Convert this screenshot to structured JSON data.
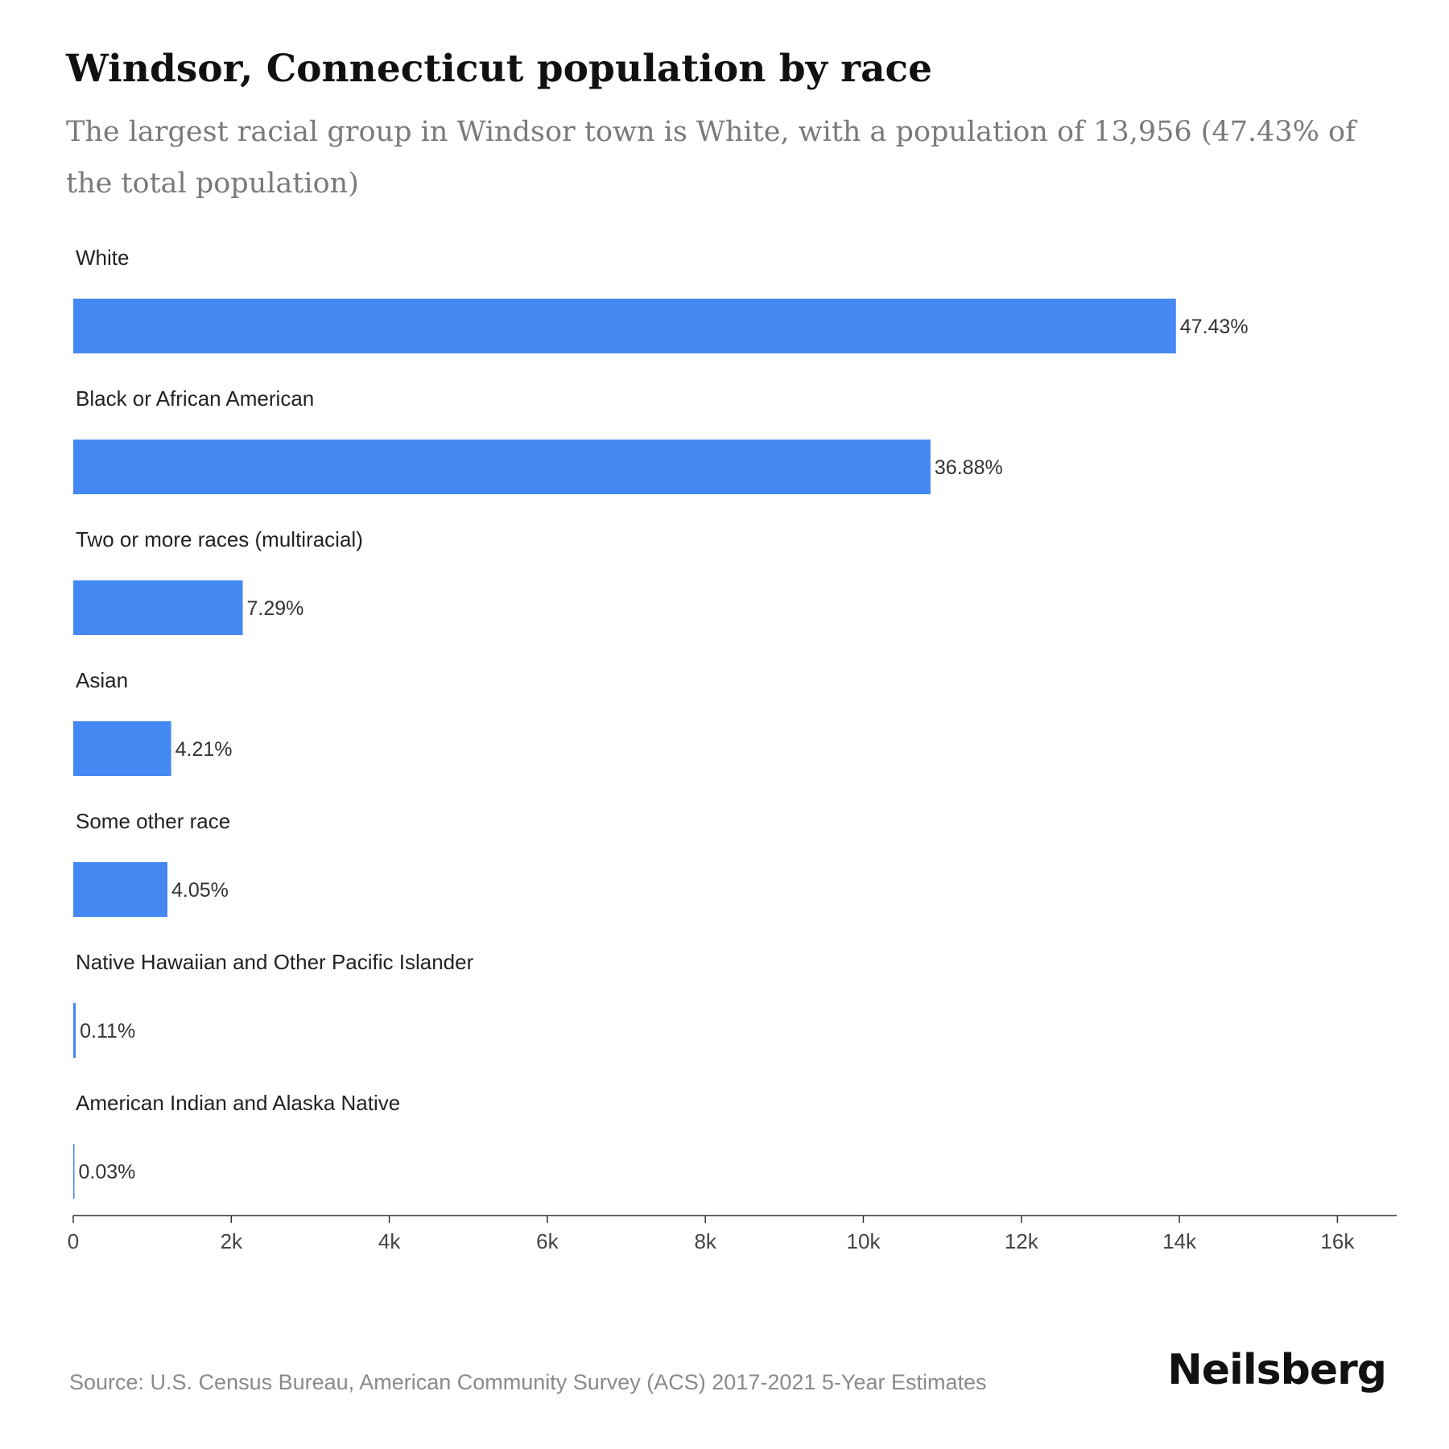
{
  "header": {
    "title": "Windsor, Connecticut population by race",
    "subtitle": "The largest racial group in Windsor town is White, with a population of 13,956 (47.43% of the total population)"
  },
  "chart_data": {
    "type": "bar",
    "orientation": "horizontal",
    "title": "Windsor, Connecticut population by race",
    "subtitle": "The largest racial group in Windsor town is White, with a population of 13,956 (47.43% of the total population)",
    "categories": [
      "White",
      "Black or African American",
      "Two or more races (multiracial)",
      "Asian",
      "Some other race",
      "Native Hawaiian and Other Pacific Islander",
      "American Indian and Alaska Native"
    ],
    "values": [
      13956,
      10850,
      2145,
      1239,
      1192,
      32,
      9
    ],
    "data_labels": [
      "47.43%",
      "36.88%",
      "7.29%",
      "4.21%",
      "4.05%",
      "0.11%",
      "0.03%"
    ],
    "xlim": [
      0,
      16750
    ],
    "x_ticks": [
      0,
      2000,
      4000,
      6000,
      8000,
      10000,
      12000,
      14000,
      16000
    ],
    "x_tick_labels": [
      "0",
      "2k",
      "4k",
      "6k",
      "8k",
      "10k",
      "12k",
      "14k",
      "16k"
    ],
    "xlabel": "",
    "ylabel": "",
    "grid": false,
    "bar_color": "#4488f2"
  },
  "footer": {
    "source": "Source: U.S. Census Bureau, American Community Survey (ACS) 2017-2021 5-Year Estimates",
    "brand": "Neilsberg"
  },
  "colors": {
    "bar": "#4488f2",
    "title": "#111111",
    "subtitle": "#7a7a7a",
    "text": "#222222",
    "axis": "#333333",
    "source": "#8a8a8a"
  }
}
